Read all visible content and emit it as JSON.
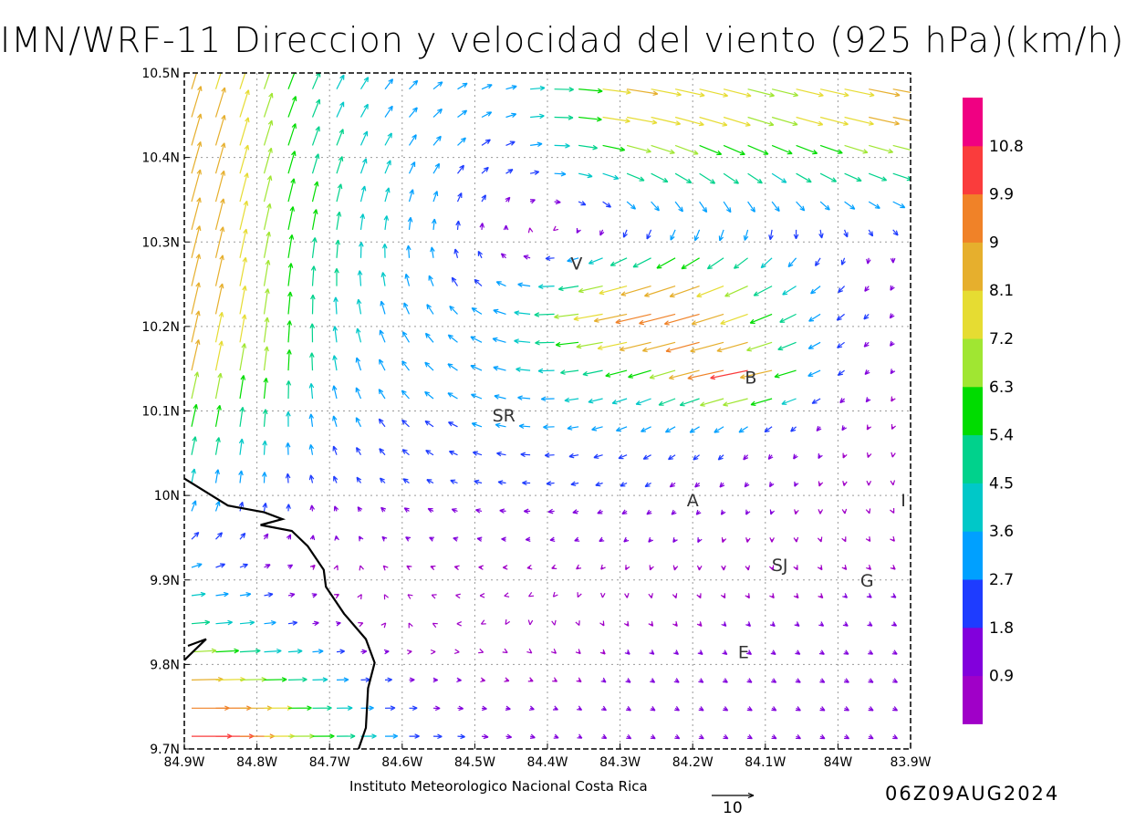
{
  "title": "IMN/WRF-11 Direccion y velocidad del viento (925 hPa)(km/h)",
  "footer": {
    "credit": "Instituto Meteorologico Nacional Costa Rica",
    "date": "06Z09AUG2024",
    "reference_vector_label": "10",
    "reference_vector_value": 10
  },
  "map": {
    "lon_range": [
      -84.9,
      -83.9
    ],
    "lat_range": [
      9.7,
      10.5
    ],
    "lon_ticks": [
      "84.9W",
      "84.8W",
      "84.7W",
      "84.6W",
      "84.5W",
      "84.4W",
      "84.3W",
      "84.2W",
      "84.1W",
      "84W",
      "83.9W"
    ],
    "lat_ticks": [
      "9.7N",
      "9.8N",
      "9.9N",
      "10N",
      "10.1N",
      "10.2N",
      "10.3N",
      "10.4N",
      "10.5N"
    ],
    "grid": true,
    "places": [
      {
        "label": "V",
        "lon": -84.36,
        "lat": 10.275
      },
      {
        "label": "B",
        "lon": -84.12,
        "lat": 10.14
      },
      {
        "label": "SR",
        "lon": -84.46,
        "lat": 10.095
      },
      {
        "label": "A",
        "lon": -84.2,
        "lat": 9.995
      },
      {
        "label": "SJ",
        "lon": -84.08,
        "lat": 9.918
      },
      {
        "label": "G",
        "lon": -83.96,
        "lat": 9.9
      },
      {
        "label": "I",
        "lon": -83.91,
        "lat": 9.995
      },
      {
        "label": "E",
        "lon": -84.13,
        "lat": 9.815
      }
    ],
    "coastline": [
      [
        -84.9,
        10.02
      ],
      [
        -84.84,
        9.988
      ],
      [
        -84.79,
        9.98
      ],
      [
        -84.765,
        9.972
      ],
      [
        -84.795,
        9.965
      ],
      [
        -84.752,
        9.958
      ],
      [
        -84.73,
        9.94
      ],
      [
        -84.708,
        9.912
      ],
      [
        -84.705,
        9.892
      ],
      [
        -84.68,
        9.86
      ],
      [
        -84.65,
        9.83
      ],
      [
        -84.638,
        9.802
      ],
      [
        -84.647,
        9.772
      ],
      [
        -84.65,
        9.725
      ],
      [
        -84.66,
        9.7
      ]
    ],
    "coastline_inlet": [
      [
        -84.9,
        9.805
      ],
      [
        -84.87,
        9.83
      ],
      [
        -84.895,
        9.822
      ]
    ]
  },
  "colorbar": {
    "levels": [
      "0.9",
      "1.8",
      "2.7",
      "3.6",
      "4.5",
      "5.4",
      "6.3",
      "7.2",
      "8.1",
      "9",
      "9.9",
      "10.8"
    ],
    "colors": [
      "#a000c8",
      "#8200dc",
      "#1e3cff",
      "#00a0ff",
      "#00c8c8",
      "#00d28c",
      "#00dc00",
      "#a0e632",
      "#e6dc32",
      "#e6af2d",
      "#f08228",
      "#fa3c3c",
      "#f00082"
    ]
  },
  "wind_field_description": "Wind vectors at 925 hPa; strong NNE/NE flow (green-orange) in the west, anticyclonic gyre near 84.4W 10.3N, strong easterlies (orange) near V and B, weak variable flow (purple/blue) east and south"
}
